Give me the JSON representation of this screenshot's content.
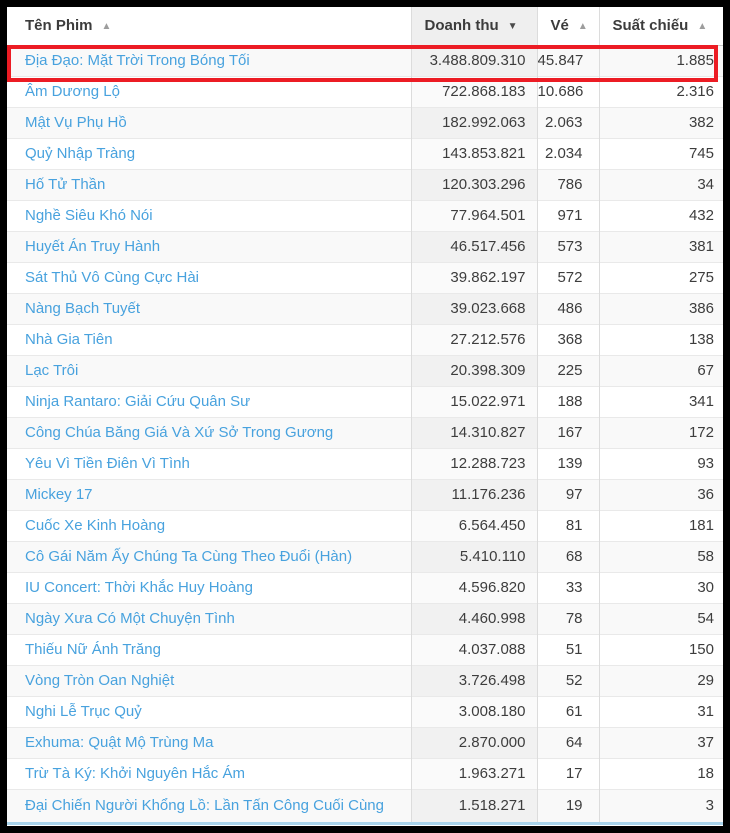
{
  "table": {
    "columns": [
      {
        "label": "Tên Phim",
        "sort": "asc",
        "active": false
      },
      {
        "label": "Doanh thu",
        "sort": "desc",
        "active": true
      },
      {
        "label": "Vé",
        "sort": "asc",
        "active": false
      },
      {
        "label": "Suất chiếu",
        "sort": "asc",
        "active": false
      }
    ],
    "rows": [
      {
        "name": "Địa Đạo: Mặt Trời Trong Bóng Tối",
        "revenue": "3.488.809.310",
        "tickets": "45.847",
        "showtimes": "1.885",
        "highlighted": true
      },
      {
        "name": "Âm Dương Lộ",
        "revenue": "722.868.183",
        "tickets": "10.686",
        "showtimes": "2.316",
        "highlighted": false
      },
      {
        "name": "Mật Vụ Phụ Hồ",
        "revenue": "182.992.063",
        "tickets": "2.063",
        "showtimes": "382",
        "highlighted": false
      },
      {
        "name": "Quỷ Nhập Tràng",
        "revenue": "143.853.821",
        "tickets": "2.034",
        "showtimes": "745",
        "highlighted": false
      },
      {
        "name": "Hố Tử Thần",
        "revenue": "120.303.296",
        "tickets": "786",
        "showtimes": "34",
        "highlighted": false
      },
      {
        "name": "Nghề Siêu Khó Nói",
        "revenue": "77.964.501",
        "tickets": "971",
        "showtimes": "432",
        "highlighted": false
      },
      {
        "name": "Huyết Án Truy Hành",
        "revenue": "46.517.456",
        "tickets": "573",
        "showtimes": "381",
        "highlighted": false
      },
      {
        "name": "Sát Thủ Vô Cùng Cực Hài",
        "revenue": "39.862.197",
        "tickets": "572",
        "showtimes": "275",
        "highlighted": false
      },
      {
        "name": "Nàng Bạch Tuyết",
        "revenue": "39.023.668",
        "tickets": "486",
        "showtimes": "386",
        "highlighted": false
      },
      {
        "name": "Nhà Gia Tiên",
        "revenue": "27.212.576",
        "tickets": "368",
        "showtimes": "138",
        "highlighted": false
      },
      {
        "name": "Lạc Trôi",
        "revenue": "20.398.309",
        "tickets": "225",
        "showtimes": "67",
        "highlighted": false
      },
      {
        "name": "Ninja Rantaro: Giải Cứu Quân Sư",
        "revenue": "15.022.971",
        "tickets": "188",
        "showtimes": "341",
        "highlighted": false
      },
      {
        "name": "Công Chúa Băng Giá Và Xứ Sở Trong Gương",
        "revenue": "14.310.827",
        "tickets": "167",
        "showtimes": "172",
        "highlighted": false
      },
      {
        "name": "Yêu Vì Tiền Điên Vì Tình",
        "revenue": "12.288.723",
        "tickets": "139",
        "showtimes": "93",
        "highlighted": false
      },
      {
        "name": "Mickey 17",
        "revenue": "11.176.236",
        "tickets": "97",
        "showtimes": "36",
        "highlighted": false
      },
      {
        "name": "Cuốc Xe Kinh Hoàng",
        "revenue": "6.564.450",
        "tickets": "81",
        "showtimes": "181",
        "highlighted": false
      },
      {
        "name": "Cô Gái Năm Ấy Chúng Ta Cùng Theo Đuổi (Hàn)",
        "revenue": "5.410.110",
        "tickets": "68",
        "showtimes": "58",
        "highlighted": false
      },
      {
        "name": "IU Concert: Thời Khắc Huy Hoàng",
        "revenue": "4.596.820",
        "tickets": "33",
        "showtimes": "30",
        "highlighted": false
      },
      {
        "name": "Ngày Xưa Có Một Chuyện Tình",
        "revenue": "4.460.998",
        "tickets": "78",
        "showtimes": "54",
        "highlighted": false
      },
      {
        "name": "Thiếu Nữ Ánh Trăng",
        "revenue": "4.037.088",
        "tickets": "51",
        "showtimes": "150",
        "highlighted": false
      },
      {
        "name": "Vòng Tròn Oan Nghiệt",
        "revenue": "3.726.498",
        "tickets": "52",
        "showtimes": "29",
        "highlighted": false
      },
      {
        "name": "Nghi Lễ Trục Quỷ",
        "revenue": "3.008.180",
        "tickets": "61",
        "showtimes": "31",
        "highlighted": false
      },
      {
        "name": "Exhuma: Quật Mộ Trùng Ma",
        "revenue": "2.870.000",
        "tickets": "64",
        "showtimes": "37",
        "highlighted": false
      },
      {
        "name": "Trừ Tà Ký: Khởi Nguyên Hắc Ám",
        "revenue": "1.963.271",
        "tickets": "17",
        "showtimes": "18",
        "highlighted": false
      },
      {
        "name": "Đại Chiến Người Khổng Lồ: Lần Tấn Công Cuối Cùng",
        "revenue": "1.518.271",
        "tickets": "19",
        "showtimes": "3",
        "highlighted": false
      }
    ]
  },
  "icons": {
    "sort_asc": "▲",
    "sort_desc": "▼"
  },
  "highlight": {
    "row_index": 0,
    "border_color": "#ec1c24"
  },
  "colors": {
    "link_blue": "#48a2de",
    "highlight_red": "#ec1c24",
    "odd_row_bg": "#f9f9f9",
    "sorted_cell_odd_bg": "#f1f1f1",
    "sorted_cell_even_bg": "#fafafa",
    "sorted_header_bg": "#efefef",
    "frame_black": "#000000",
    "bottom_border_blue": "#a9d4ec",
    "text_dark": "#3d3d3d"
  }
}
